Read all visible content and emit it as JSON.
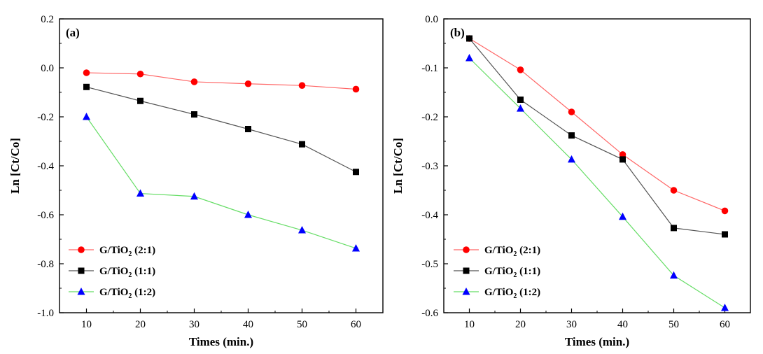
{
  "chart_data": [
    {
      "type": "line",
      "panel_label": "(a)",
      "xlabel": "Times (min.)",
      "ylabel": "Ln [Ct/Co]",
      "x": [
        10,
        20,
        30,
        40,
        50,
        60
      ],
      "xticks": [
        10,
        20,
        30,
        40,
        50,
        60
      ],
      "xlim": [
        5,
        65
      ],
      "ylim": [
        -1.0,
        0.2
      ],
      "yticks": [
        0.2,
        0.0,
        -0.2,
        -0.4,
        -0.6,
        -0.8,
        -1.0
      ],
      "ytick_labels": [
        "0.2",
        "0.0",
        "-0.2",
        "-0.4",
        "-0.6",
        "-0.8",
        "-1.0"
      ],
      "grid": false,
      "legend_position": "bottom-left",
      "series": [
        {
          "name": "G/TiO",
          "name_sub": "2",
          "name_suffix": " (2:1)",
          "marker": "circle",
          "marker_color": "#ff0000",
          "line_color": "#ff6666",
          "values": [
            -0.02,
            -0.025,
            -0.057,
            -0.065,
            -0.072,
            -0.087
          ]
        },
        {
          "name": "G/TiO",
          "name_sub": "2",
          "name_suffix": " (1:1)",
          "marker": "square",
          "marker_color": "#000000",
          "line_color": "#555555",
          "values": [
            -0.078,
            -0.135,
            -0.19,
            -0.25,
            -0.312,
            -0.425
          ]
        },
        {
          "name": "G/TiO",
          "name_sub": "2",
          "name_suffix": " (1:2)",
          "marker": "triangle",
          "marker_color": "#0000ff",
          "line_color": "#66dd66",
          "values": [
            -0.2,
            -0.513,
            -0.525,
            -0.6,
            -0.663,
            -0.737
          ]
        }
      ]
    },
    {
      "type": "line",
      "panel_label": "(b)",
      "xlabel": "Times (min.)",
      "ylabel": "Ln [Ct/Co]",
      "x": [
        10,
        20,
        30,
        40,
        50,
        60
      ],
      "xticks": [
        10,
        20,
        30,
        40,
        50,
        60
      ],
      "xlim": [
        5,
        65
      ],
      "ylim": [
        -0.6,
        0.0
      ],
      "yticks": [
        0.0,
        -0.1,
        -0.2,
        -0.3,
        -0.4,
        -0.5,
        -0.6
      ],
      "ytick_labels": [
        "0.0",
        "-0.1",
        "-0.2",
        "-0.3",
        "-0.4",
        "-0.5",
        "-0.6"
      ],
      "grid": false,
      "legend_position": "bottom-left",
      "series": [
        {
          "name": "G/TiO",
          "name_sub": "2",
          "name_suffix": " (2:1)",
          "marker": "circle",
          "marker_color": "#ff0000",
          "line_color": "#ff6666",
          "values": [
            -0.04,
            -0.104,
            -0.19,
            -0.277,
            -0.35,
            -0.392
          ]
        },
        {
          "name": "G/TiO",
          "name_sub": "2",
          "name_suffix": " (1:1)",
          "marker": "square",
          "marker_color": "#000000",
          "line_color": "#555555",
          "values": [
            -0.04,
            -0.165,
            -0.238,
            -0.287,
            -0.427,
            -0.44
          ]
        },
        {
          "name": "G/TiO",
          "name_sub": "2",
          "name_suffix": " (1:2)",
          "marker": "triangle",
          "marker_color": "#0000ff",
          "line_color": "#66dd66",
          "values": [
            -0.08,
            -0.183,
            -0.287,
            -0.404,
            -0.524,
            -0.59
          ]
        }
      ]
    }
  ]
}
